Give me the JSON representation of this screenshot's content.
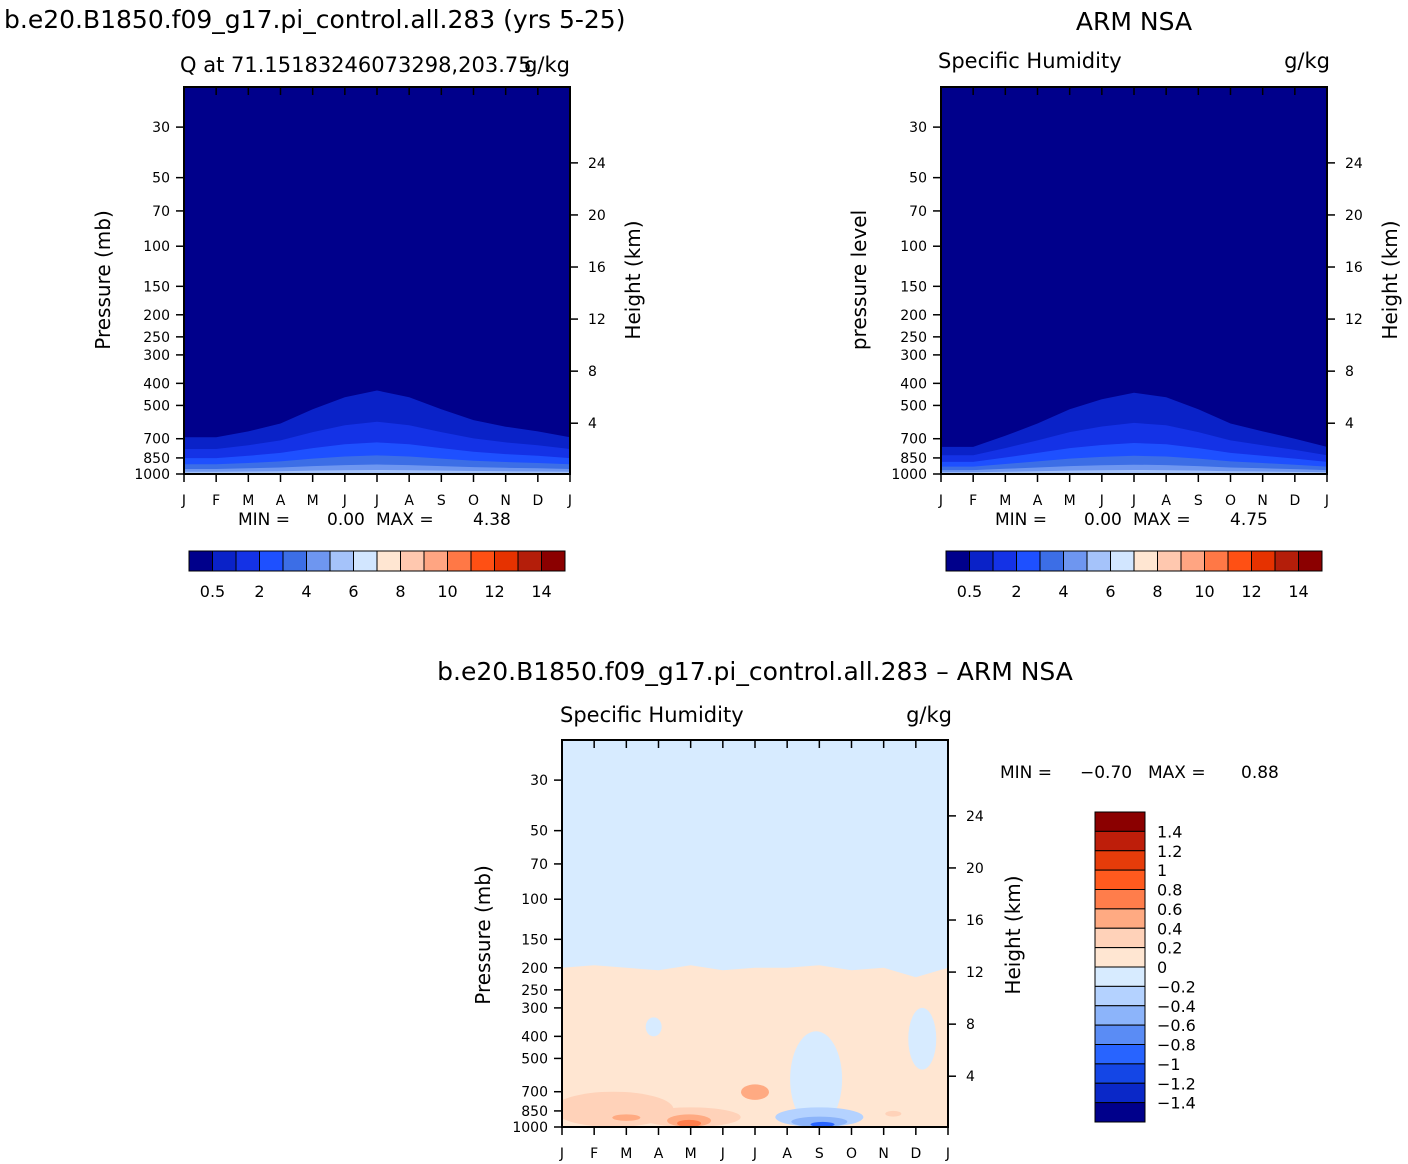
{
  "top_left_title": "b.e20.B1850.f09_g17.pi_control.all.283 (yrs 5-25)",
  "top_right_title": "ARM NSA",
  "bottom_title": "b.e20.B1850.f09_g17.pi_control.all.283 – ARM NSA",
  "colors": {
    "abs_scale": [
      "#00008b",
      "#0a22c8",
      "#1432e6",
      "#1e50ff",
      "#3c6ee6",
      "#6e96f0",
      "#a5c3fa",
      "#d2e6ff",
      "#ffe6d2",
      "#ffc8af",
      "#ffa582",
      "#ff7846",
      "#ff5014",
      "#e63200",
      "#b41e0a",
      "#8b0000"
    ],
    "diff_scale": [
      "#00008b",
      "#0a28c8",
      "#1446e6",
      "#2864ff",
      "#5a8cf5",
      "#8cb4fa",
      "#b4d2ff",
      "#d7ebff",
      "#ffe6d2",
      "#ffd2b9",
      "#ffaa82",
      "#ff7d4b",
      "#ff5a1e",
      "#e63c0a",
      "#be1e0a",
      "#8b0000"
    ]
  },
  "chart_data": [
    {
      "type": "heatmap",
      "panel": "model",
      "title_left": "Q at 71.15183246073298,203.75",
      "title_right": "g/kg",
      "ylabel": "Pressure (mb)",
      "ylabel_right": "Height (km)",
      "x_categories": [
        "J",
        "F",
        "M",
        "A",
        "M",
        "J",
        "J",
        "A",
        "S",
        "O",
        "N",
        "D",
        "J"
      ],
      "y_ticks": [
        "30",
        "50",
        "70",
        "100",
        "150",
        "200",
        "250",
        "300",
        "400",
        "500",
        "700",
        "850",
        "1000"
      ],
      "y_range_mb": [
        20,
        1000
      ],
      "height_ticks_km": [
        "4",
        "8",
        "12",
        "16",
        "20",
        "24"
      ],
      "stats": {
        "min_label": "MIN =",
        "min": "0.00",
        "max_label": "MAX =",
        "max": "4.38"
      },
      "contour_top_mb": [
        690,
        690,
        650,
        600,
        520,
        460,
        430,
        460,
        520,
        580,
        620,
        650,
        690
      ],
      "colorbar_labels": [
        "0.5",
        "2",
        "4",
        "6",
        "8",
        "10",
        "12",
        "14"
      ]
    },
    {
      "type": "heatmap",
      "panel": "observation",
      "title_left": "Specific Humidity",
      "title_right": "g/kg",
      "ylabel": "pressure level",
      "ylabel_right": "Height (km)",
      "x_categories": [
        "J",
        "F",
        "M",
        "A",
        "M",
        "J",
        "J",
        "A",
        "S",
        "O",
        "N",
        "D",
        "J"
      ],
      "y_ticks": [
        "30",
        "50",
        "70",
        "100",
        "150",
        "200",
        "250",
        "300",
        "400",
        "500",
        "700",
        "850",
        "1000"
      ],
      "y_range_mb": [
        20,
        1000
      ],
      "height_ticks_km": [
        "4",
        "8",
        "12",
        "16",
        "20",
        "24"
      ],
      "stats": {
        "min_label": "MIN =",
        "min": "0.00",
        "max_label": "MAX =",
        "max": "4.75"
      },
      "contour_top_mb": [
        760,
        760,
        680,
        600,
        520,
        470,
        440,
        460,
        520,
        600,
        650,
        700,
        760
      ],
      "colorbar_labels": [
        "0.5",
        "2",
        "4",
        "6",
        "8",
        "10",
        "12",
        "14"
      ]
    },
    {
      "type": "heatmap",
      "panel": "difference",
      "title_left": "Specific Humidity",
      "title_right": "g/kg",
      "ylabel": "Pressure (mb)",
      "ylabel_right": "Height (km)",
      "x_categories": [
        "J",
        "F",
        "M",
        "A",
        "M",
        "J",
        "J",
        "A",
        "S",
        "O",
        "N",
        "D",
        "J"
      ],
      "y_ticks": [
        "30",
        "50",
        "70",
        "100",
        "150",
        "200",
        "250",
        "300",
        "400",
        "500",
        "700",
        "850",
        "1000"
      ],
      "y_range_mb": [
        20,
        1000
      ],
      "height_ticks_km": [
        "4",
        "8",
        "12",
        "16",
        "20",
        "24"
      ],
      "stats": {
        "min_label": "MIN =",
        "min": "−0.70",
        "max_label": "MAX =",
        "max": "0.88"
      },
      "zero_line_mb": [
        200,
        195,
        200,
        205,
        195,
        205,
        200,
        200,
        195,
        205,
        200,
        220,
        200
      ],
      "colorbar_labels": [
        "1.4",
        "1.2",
        "1",
        "0.8",
        "0.6",
        "0.4",
        "0.2",
        "0",
        "−0.2",
        "−0.4",
        "−0.6",
        "−0.8",
        "−1",
        "−1.2",
        "−1.4"
      ]
    }
  ]
}
